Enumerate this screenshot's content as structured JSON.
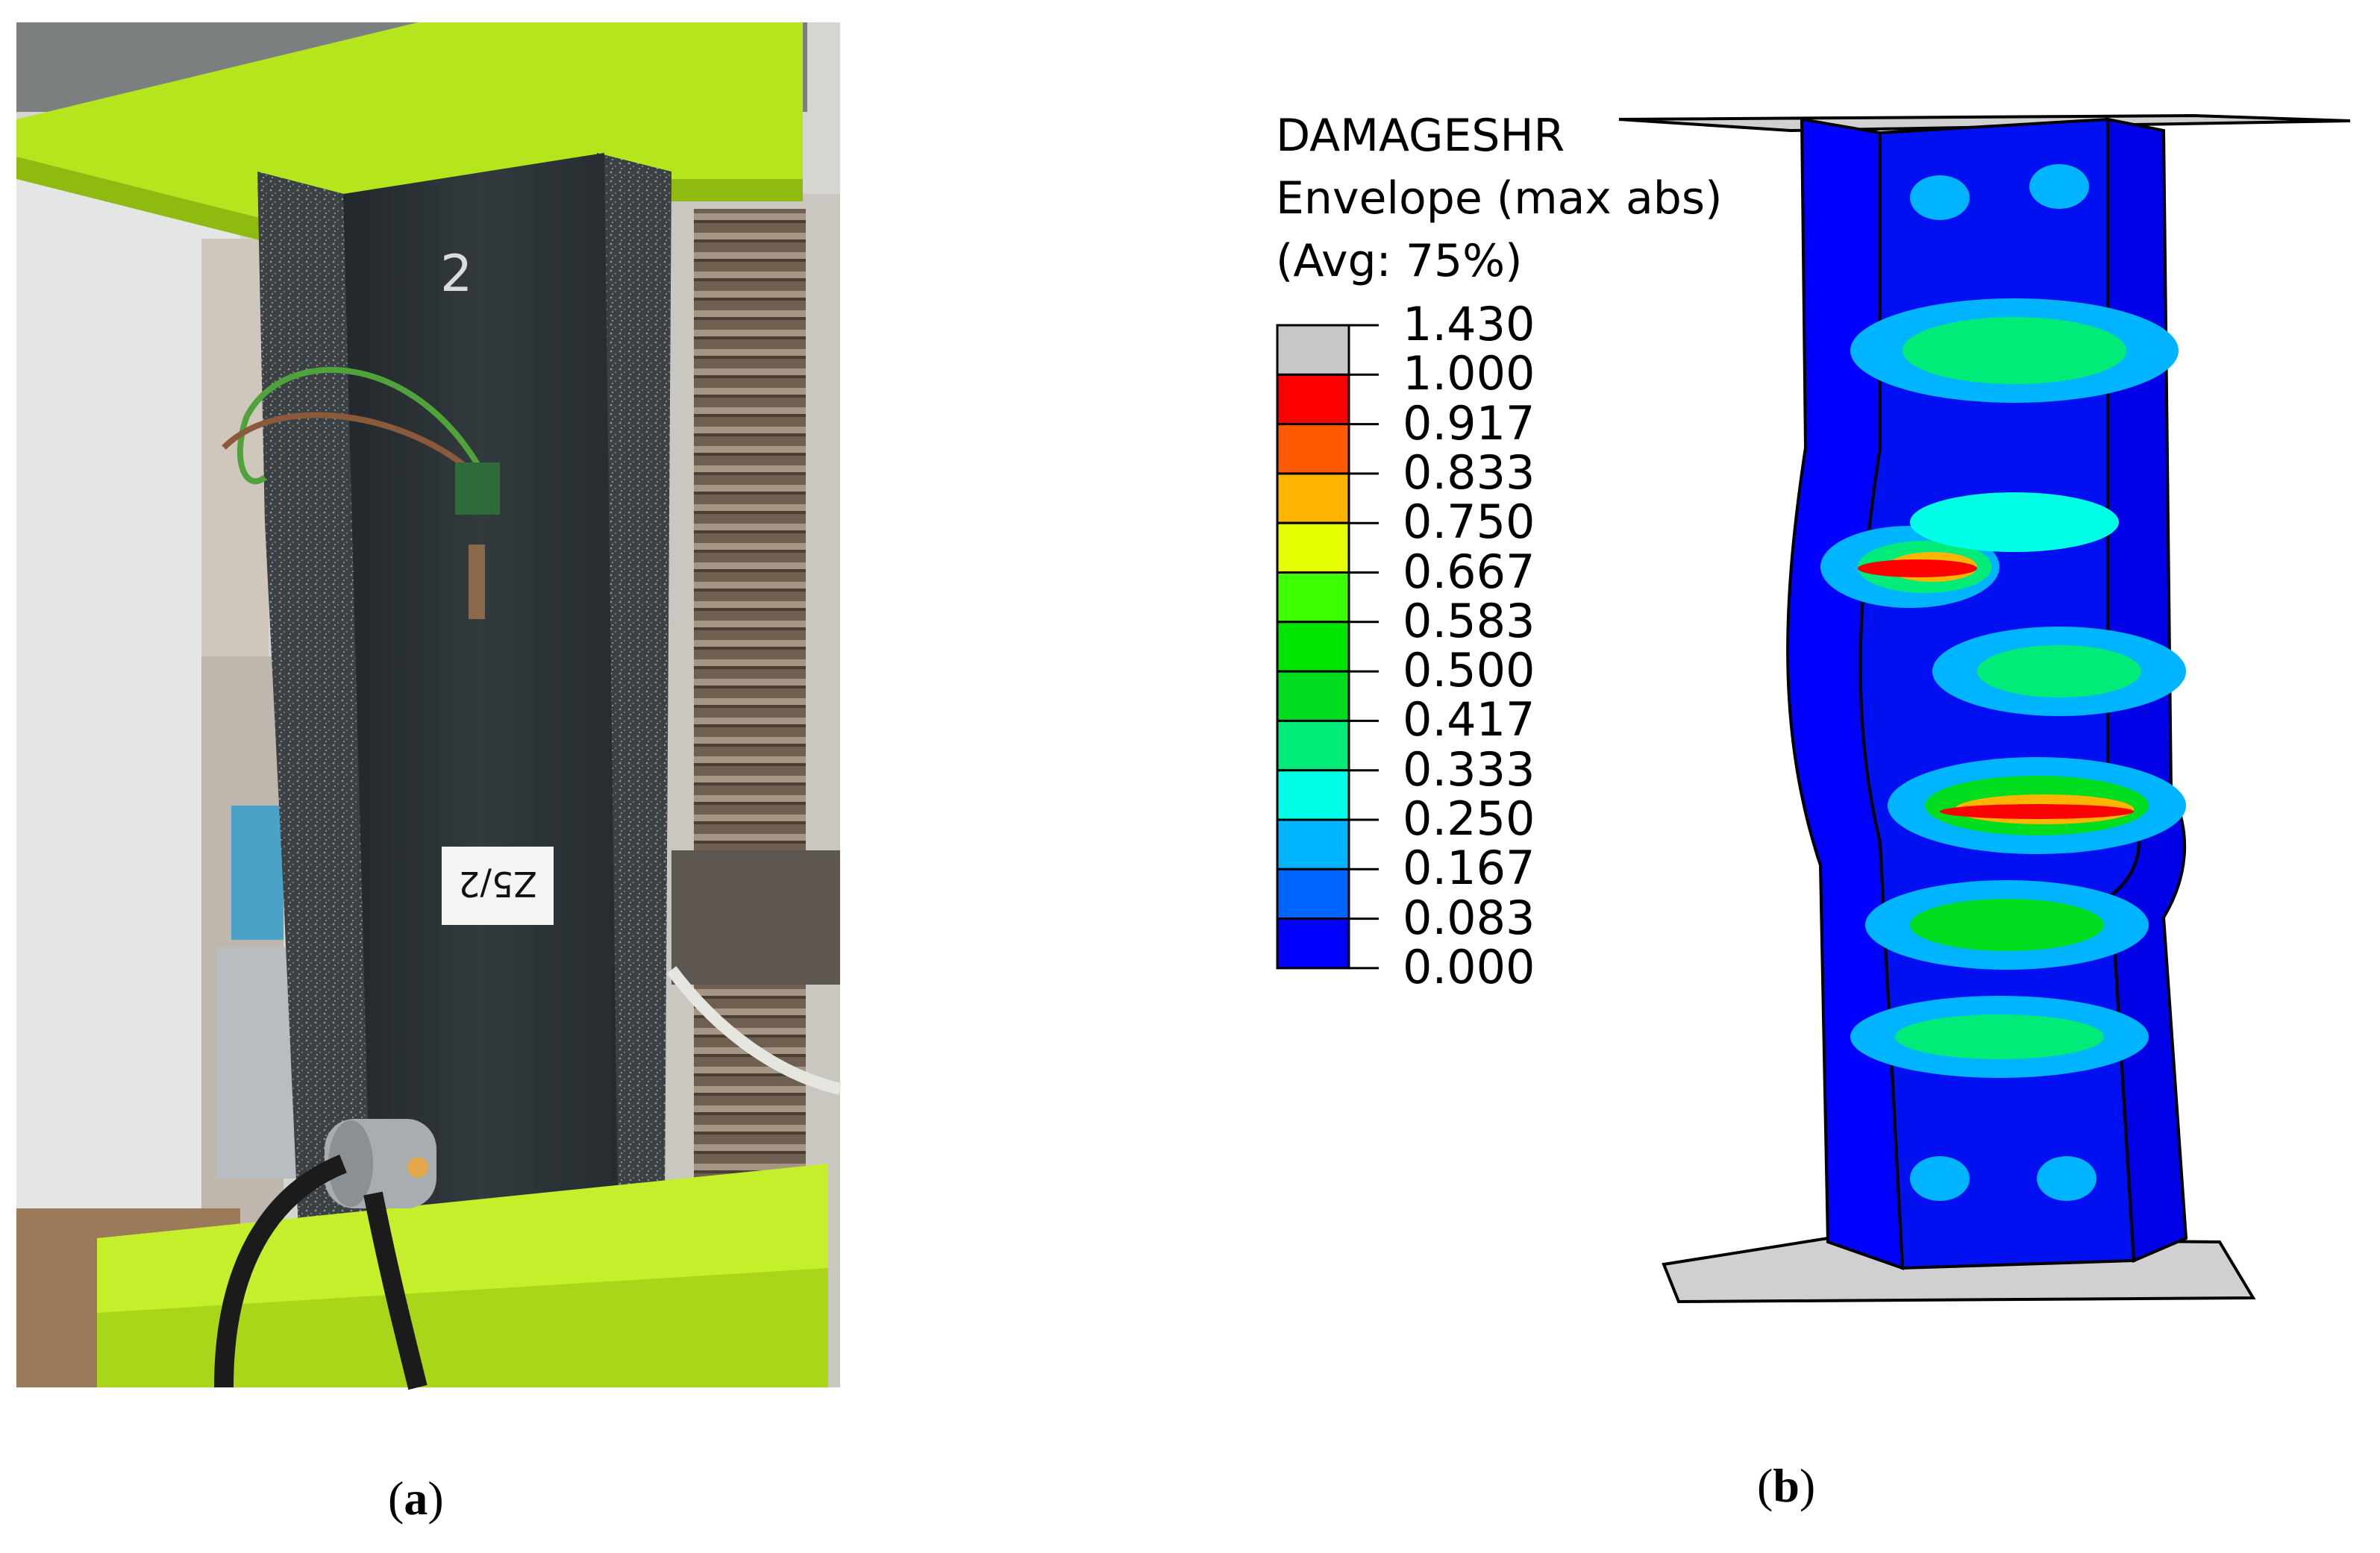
{
  "panel_a": {
    "caption_letter": "a",
    "specimen_number": "2",
    "specimen_tag": "Z5/2",
    "colors": {
      "machine_green": "#b5e61d",
      "specimen": "#2c3235",
      "rod": "#7a6a58",
      "wall": "#d9d9d6"
    }
  },
  "panel_b": {
    "caption_letter": "b",
    "legend": {
      "title_lines": [
        "DAMAGESHR",
        "Envelope (max abs)",
        "(Avg: 75%)"
      ],
      "ticks": [
        "1.430",
        "1.000",
        "0.917",
        "0.833",
        "0.750",
        "0.667",
        "0.583",
        "0.500",
        "0.417",
        "0.333",
        "0.250",
        "0.167",
        "0.083",
        "0.000"
      ],
      "band_colors": [
        "#c8c8c8",
        "#ff0000",
        "#ff5a00",
        "#ffb400",
        "#e6ff00",
        "#3cff00",
        "#00e600",
        "#00dc1e",
        "#00eb78",
        "#00ffe6",
        "#00b4ff",
        "#0064ff",
        "#0000ff"
      ]
    }
  }
}
